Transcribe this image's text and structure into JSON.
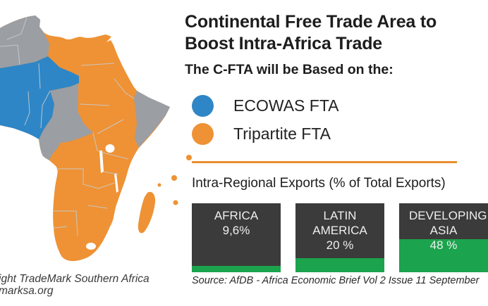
{
  "colors": {
    "ecowas_blue": "#2E86C6",
    "tripartite_orange": "#EE9235",
    "neutral_gray": "#9B9EA3",
    "box_dark": "#3B3B3B",
    "bar_green": "#1BA34D",
    "divider_orange": "#E78E2D"
  },
  "header": {
    "title": "Continental Free Trade Area to\nBoost Intra-Africa Trade",
    "subtitle": "The C-FTA will be Based on the:"
  },
  "legend": {
    "items": [
      {
        "label": "ECOWAS FTA",
        "color": "#2E86C6"
      },
      {
        "label": "Tripartite FTA",
        "color": "#EE9235"
      }
    ]
  },
  "exports": {
    "heading": "Intra-Regional Exports (% of Total Exports)",
    "boxes": [
      {
        "name": "AFRICA",
        "value": "9,6%",
        "percent": 9.6
      },
      {
        "name": "LATIN AMERICA",
        "value": "20 %",
        "percent": 20
      },
      {
        "name": "DEVELOPING ASIA",
        "value": "48 %",
        "percent": 48
      }
    ]
  },
  "chart_data": {
    "type": "bar",
    "categories": [
      "AFRICA",
      "LATIN AMERICA",
      "DEVELOPING ASIA"
    ],
    "values": [
      9.6,
      20,
      48
    ],
    "title": "Intra-Regional Exports (% of Total Exports)",
    "xlabel": "",
    "ylabel": "",
    "ylim": [
      0,
      100
    ]
  },
  "map": {
    "name": "africa-map",
    "regions": [
      {
        "name": "ECOWAS FTA",
        "color": "#2E86C6"
      },
      {
        "name": "Tripartite FTA",
        "color": "#EE9235"
      },
      {
        "name": "Other countries",
        "color": "#9B9EA3"
      }
    ]
  },
  "source_note": "Source:  AfDB - Africa Economic Brief  Vol 2 Issue 11 September",
  "credit": {
    "line1": "ight TradeMark Southern Africa",
    "line2": "marksa.org"
  }
}
